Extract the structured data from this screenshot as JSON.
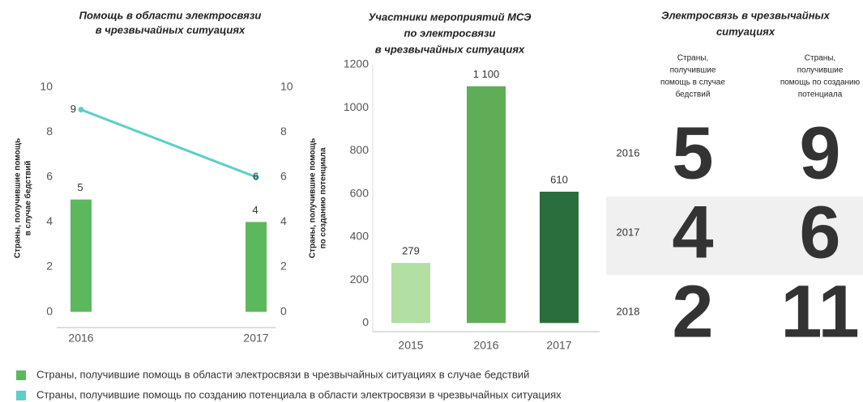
{
  "chart_data": [
    {
      "type": "combo",
      "title": [
        "Помощь в области электросвязи",
        "в чрезвычайных ситуациях"
      ],
      "categories": [
        "2016",
        "2017"
      ],
      "y_label": [
        "Страны, получившие помощь",
        "в случае бедствий"
      ],
      "y2_label": [
        "Страны, получившие помощь",
        "по созданию потенциала"
      ],
      "ylim": [
        -0.7,
        11
      ],
      "yticks": [
        0,
        2,
        4,
        6,
        8,
        10
      ],
      "y2lim": [
        -0.7,
        11
      ],
      "y2ticks": [
        0,
        2,
        4,
        6,
        8,
        10
      ],
      "series": [
        {
          "name": "Страны, получившие помощь в области электросвязи в чрезвычайных ситуациях в случае бедствий",
          "color": "#5cb85c",
          "kind": "bar",
          "values": [
            5,
            4
          ]
        },
        {
          "name": "Страны, получившие помощь по созданию потенциала в области электросвязи в чрезвычайных ситуациях",
          "color": "#5ccfc7",
          "kind": "line",
          "axis": "y2",
          "values": [
            9,
            6
          ]
        }
      ]
    },
    {
      "type": "bar",
      "title": [
        "Участники мероприятий МСЭ",
        "по электросвязи",
        "в чрезвычайных ситуациях"
      ],
      "categories": [
        "2015",
        "2016",
        "2017"
      ],
      "values": [
        279,
        1100,
        610
      ],
      "value_labels": [
        "279",
        "1 100",
        "610"
      ],
      "colors": [
        "#b2dfa2",
        "#5fae57",
        "#2a6e3c"
      ],
      "ylim": [
        -40,
        1200
      ],
      "yticks": [
        0,
        200,
        400,
        600,
        800,
        1000,
        1200
      ]
    }
  ],
  "table": {
    "title": [
      "Электросвязь в чрезвычайных",
      "ситуациях"
    ],
    "columns": [
      [
        "Страны,",
        "получившие",
        "помощь в случае",
        "бедствий"
      ],
      [
        "Страны,",
        "получившие",
        "помощь по созданию",
        "потенциала"
      ]
    ],
    "rows": [
      {
        "year": "2016",
        "values": [
          "5",
          "9"
        ],
        "color": "#6d9fd6"
      },
      {
        "year": "2017",
        "values": [
          "4",
          "6"
        ],
        "color": "#f7953e"
      },
      {
        "year": "2018",
        "values": [
          "2",
          "11"
        ],
        "color": "#6cbf4a"
      }
    ]
  }
}
